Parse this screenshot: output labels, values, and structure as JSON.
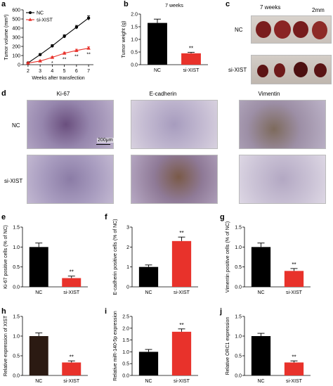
{
  "panels": {
    "a": "a",
    "b": "b",
    "c": "c",
    "d": "d",
    "e": "e",
    "f": "f",
    "g": "g",
    "h": "h",
    "i": "i",
    "j": "j"
  },
  "photo_c": {
    "title": "7 weeks",
    "scale": "2mm",
    "row_labels": [
      "NC",
      "si-XIST"
    ]
  },
  "ihc_d": {
    "col_labels": [
      "Ki-67",
      "E-cadherin",
      "Vimentin"
    ],
    "row_labels": [
      "NC",
      "si-XIST"
    ],
    "scale_bar": "200μm"
  },
  "chart_data": [
    {
      "id": "a",
      "type": "line",
      "ylabel": "Tumor volume (mm³)",
      "xlabel": "Weeks after transfection",
      "x": [
        2,
        3,
        4,
        5,
        6,
        7
      ],
      "ylim": [
        0,
        600
      ],
      "yticks": [
        0,
        100,
        200,
        300,
        400,
        500,
        600
      ],
      "series": [
        {
          "name": "NC",
          "values": [
            20,
            110,
            205,
            310,
            410,
            510
          ],
          "errors": [
            8,
            12,
            15,
            18,
            20,
            25
          ],
          "color": "#000000",
          "marker": "circle"
        },
        {
          "name": "si-XIST",
          "values": [
            18,
            40,
            80,
            125,
            155,
            180
          ],
          "errors": [
            5,
            8,
            10,
            12,
            14,
            15
          ],
          "color": "#e8322b",
          "marker": "triangle"
        }
      ],
      "annotations": [
        {
          "x": 4,
          "text": "*"
        },
        {
          "x": 5,
          "text": "**"
        },
        {
          "x": 6,
          "text": "**"
        },
        {
          "x": 7,
          "text": "**"
        }
      ]
    },
    {
      "id": "b",
      "type": "bar",
      "title": "7 weeks",
      "ylabel": "Tumor weight (g)",
      "categories": [
        "NC",
        "si-XIST"
      ],
      "values": [
        1.65,
        0.45
      ],
      "errors": [
        0.15,
        0.04
      ],
      "colors": [
        "#000000",
        "#e8322b"
      ],
      "ylim": [
        0,
        2.0
      ],
      "yticks": [
        0.0,
        0.5,
        1.0,
        1.5,
        2.0
      ],
      "sig": "**"
    },
    {
      "id": "e",
      "type": "bar",
      "ylabel": "Ki-67 positive cells (% of NC)",
      "categories": [
        "NC",
        "si-XIST"
      ],
      "values": [
        1.0,
        0.22
      ],
      "errors": [
        0.1,
        0.05
      ],
      "colors": [
        "#000000",
        "#e8322b"
      ],
      "ylim": [
        0,
        1.5
      ],
      "yticks": [
        0.0,
        0.5,
        1.0,
        1.5
      ],
      "sig": "**"
    },
    {
      "id": "f",
      "type": "bar",
      "ylabel": "E-cadherin positive cells (% of NC)",
      "categories": [
        "NC",
        "si-XIST"
      ],
      "values": [
        1.0,
        2.3
      ],
      "errors": [
        0.1,
        0.2
      ],
      "colors": [
        "#000000",
        "#e8322b"
      ],
      "ylim": [
        0,
        3
      ],
      "yticks": [
        0,
        1,
        2,
        3
      ],
      "sig": "**"
    },
    {
      "id": "g",
      "type": "bar",
      "ylabel": "Vimentin positive cells (% of NC)",
      "categories": [
        "NC",
        "si-XIST"
      ],
      "values": [
        1.0,
        0.4
      ],
      "errors": [
        0.1,
        0.06
      ],
      "colors": [
        "#000000",
        "#e8322b"
      ],
      "ylim": [
        0,
        1.5
      ],
      "yticks": [
        0.0,
        0.5,
        1.0,
        1.5
      ],
      "sig": "**"
    },
    {
      "id": "h",
      "type": "bar",
      "ylabel": "Relative expression of XIST",
      "categories": [
        "NC",
        "si-XIST"
      ],
      "values": [
        1.0,
        0.33
      ],
      "errors": [
        0.08,
        0.04
      ],
      "colors": [
        "#2b1a12",
        "#e8322b"
      ],
      "ylim": [
        0,
        1.5
      ],
      "yticks": [
        0.0,
        0.5,
        1.0,
        1.5
      ],
      "sig": "**"
    },
    {
      "id": "i",
      "type": "bar",
      "ylabel": "Relative miR-140-5p expression",
      "categories": [
        "NC",
        "si-XIST"
      ],
      "values": [
        1.0,
        1.85
      ],
      "errors": [
        0.1,
        0.12
      ],
      "colors": [
        "#000000",
        "#e8322b"
      ],
      "ylim": [
        0,
        2.5
      ],
      "yticks": [
        0.0,
        0.5,
        1.0,
        1.5,
        2.0,
        2.5
      ],
      "sig": "**"
    },
    {
      "id": "j",
      "type": "bar",
      "ylabel": "Relative ORC1 expression",
      "categories": [
        "NC",
        "si-XIST"
      ],
      "values": [
        1.0,
        0.33
      ],
      "errors": [
        0.07,
        0.04
      ],
      "colors": [
        "#000000",
        "#e8322b"
      ],
      "ylim": [
        0,
        1.5
      ],
      "yticks": [
        0.0,
        0.5,
        1.0,
        1.5
      ],
      "sig": "**"
    }
  ]
}
